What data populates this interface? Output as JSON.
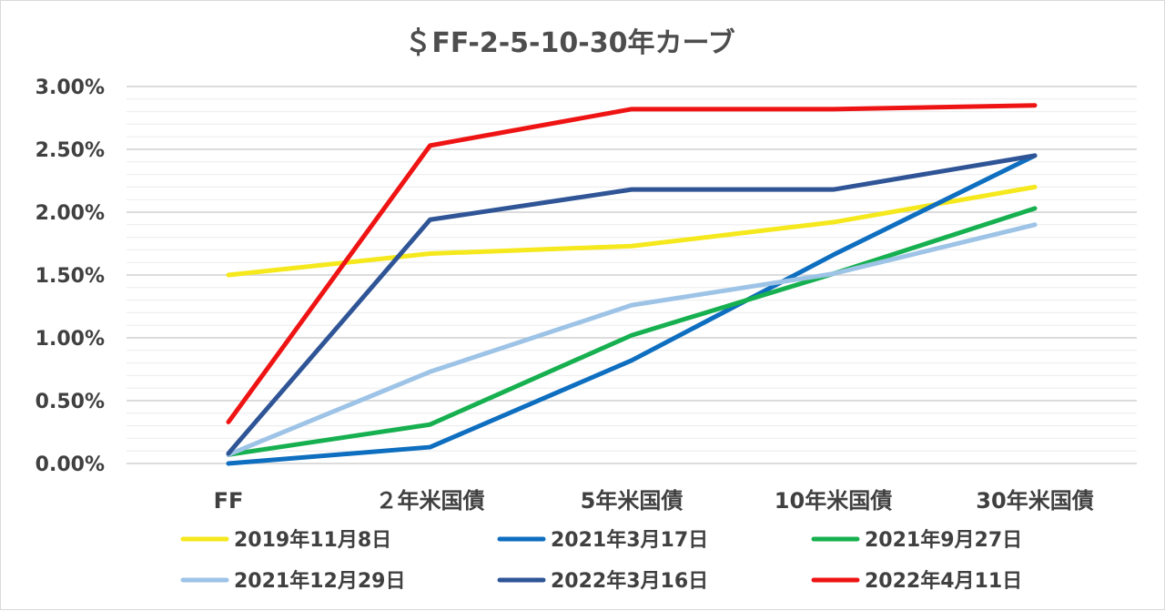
{
  "chart_data": {
    "type": "line",
    "title": "＄FF-2-5-10-30年カーブ",
    "xlabel": "",
    "ylabel": "",
    "categories": [
      "FF",
      "２年米国債",
      "5年米国債",
      "10年米国債",
      "30年米国債"
    ],
    "y_ticks": [
      "0.00%",
      "0.50%",
      "1.00%",
      "1.50%",
      "2.00%",
      "2.50%",
      "3.00%"
    ],
    "ylim": [
      0,
      3.0
    ],
    "y_unit": "%",
    "grid": true,
    "minor_grid": true,
    "legend_position": "bottom",
    "series": [
      {
        "name": "2019年11月8日",
        "color": "#f5e81c",
        "values": [
          1.5,
          1.67,
          1.73,
          1.92,
          2.2
        ]
      },
      {
        "name": "2021年3月17日",
        "color": "#0e6ebf",
        "values": [
          0.0,
          0.13,
          0.82,
          1.66,
          2.45
        ]
      },
      {
        "name": "2021年9月27日",
        "color": "#17b050",
        "values": [
          0.07,
          0.31,
          1.02,
          1.51,
          2.03
        ]
      },
      {
        "name": "2021年12月29日",
        "color": "#9dc3e6",
        "values": [
          0.07,
          0.73,
          1.26,
          1.51,
          1.9
        ]
      },
      {
        "name": "2022年3月16日",
        "color": "#2f5597",
        "values": [
          0.08,
          1.94,
          2.18,
          2.18,
          2.45
        ]
      },
      {
        "name": "2022年4月11日",
        "color": "#ef1414",
        "values": [
          0.33,
          2.53,
          2.82,
          2.82,
          2.85
        ]
      }
    ]
  }
}
